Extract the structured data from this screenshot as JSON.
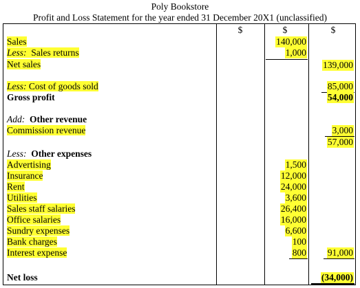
{
  "header": {
    "company": "Poly Bookstore",
    "statement": "Profit and Loss Statement for the year ended 31 December 20X1 (unclassified)"
  },
  "currency": {
    "col1": "$",
    "col2": "$",
    "col3": "$"
  },
  "rows": {
    "sales": {
      "label": "Sales",
      "col2": "140,000"
    },
    "sales_returns": {
      "prefix": "Less:",
      "label": "Sales returns",
      "col2": "1,000"
    },
    "net_sales": {
      "label": "Net sales",
      "col3": "139,000"
    },
    "cogs": {
      "prefix": "Less:",
      "label": "Cost of goods sold",
      "col3": "85,000"
    },
    "gross_profit": {
      "label": "Gross profit",
      "col3": "54,000"
    },
    "add_other_revenue": {
      "prefix": "Add:",
      "label": "Other revenue"
    },
    "commission_revenue": {
      "label": "Commission revenue",
      "col3": "3,000"
    },
    "subtotal": {
      "col3": "57,000"
    },
    "less_other_expenses": {
      "prefix": "Less:",
      "label": "Other expenses"
    },
    "advertising": {
      "label": "Advertising",
      "col2": "1,500"
    },
    "insurance": {
      "label": "Insurance",
      "col2": "12,000"
    },
    "rent": {
      "label": "Rent",
      "col2": "24,000"
    },
    "utilities": {
      "label": "Utilities",
      "col2": "3,600"
    },
    "sales_staff_salaries": {
      "label": "Sales staff salaries",
      "col2": "26,400"
    },
    "office_salaries": {
      "label": "Office salaries",
      "col2": "16,000"
    },
    "sundry_expenses": {
      "label": "Sundry expenses",
      "col2": "6,600"
    },
    "bank_charges": {
      "label": "Bank charges",
      "col2": "100"
    },
    "interest_expense": {
      "label": "Interest expense",
      "col2": "800",
      "col3": "91,000"
    },
    "net_loss": {
      "label": "Net loss",
      "col3": "(34,000)"
    }
  },
  "colors": {
    "highlight": "#ffff33",
    "text": "#000000"
  }
}
